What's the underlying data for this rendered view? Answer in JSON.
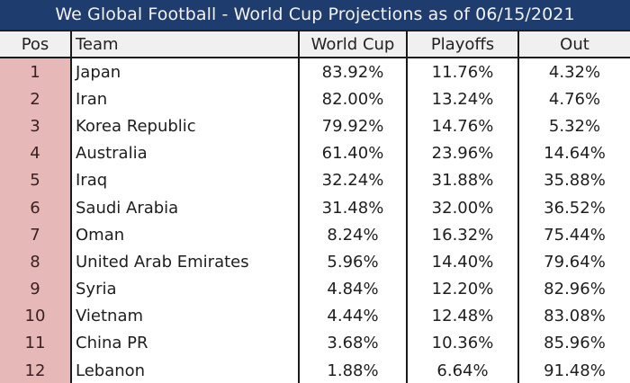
{
  "title": "We Global Football - World Cup Projections as of 06/15/2021",
  "colors": {
    "title_bg": "#1f3c6e",
    "title_text": "#f2f2f2",
    "header_bg": "#f0f0f0",
    "pos_bg": "#e6b9b8",
    "border": "#1a1a1a"
  },
  "columns": {
    "pos": "Pos",
    "team": "Team",
    "world_cup": "World Cup",
    "playoffs": "Playoffs",
    "out": "Out"
  },
  "rows": [
    {
      "pos": "1",
      "team": "Japan",
      "world_cup": "83.92%",
      "playoffs": "11.76%",
      "out": "4.32%"
    },
    {
      "pos": "2",
      "team": "Iran",
      "world_cup": "82.00%",
      "playoffs": "13.24%",
      "out": "4.76%"
    },
    {
      "pos": "3",
      "team": "Korea Republic",
      "world_cup": "79.92%",
      "playoffs": "14.76%",
      "out": "5.32%"
    },
    {
      "pos": "4",
      "team": "Australia",
      "world_cup": "61.40%",
      "playoffs": "23.96%",
      "out": "14.64%"
    },
    {
      "pos": "5",
      "team": "Iraq",
      "world_cup": "32.24%",
      "playoffs": "31.88%",
      "out": "35.88%"
    },
    {
      "pos": "6",
      "team": "Saudi Arabia",
      "world_cup": "31.48%",
      "playoffs": "32.00%",
      "out": "36.52%"
    },
    {
      "pos": "7",
      "team": "Oman",
      "world_cup": "8.24%",
      "playoffs": "16.32%",
      "out": "75.44%"
    },
    {
      "pos": "8",
      "team": "United Arab Emirates",
      "world_cup": "5.96%",
      "playoffs": "14.40%",
      "out": "79.64%"
    },
    {
      "pos": "9",
      "team": "Syria",
      "world_cup": "4.84%",
      "playoffs": "12.20%",
      "out": "82.96%"
    },
    {
      "pos": "10",
      "team": "Vietnam",
      "world_cup": "4.44%",
      "playoffs": "12.48%",
      "out": "83.08%"
    },
    {
      "pos": "11",
      "team": "China PR",
      "world_cup": "3.68%",
      "playoffs": "10.36%",
      "out": "85.96%"
    },
    {
      "pos": "12",
      "team": "Lebanon",
      "world_cup": "1.88%",
      "playoffs": "6.64%",
      "out": "91.48%"
    }
  ]
}
